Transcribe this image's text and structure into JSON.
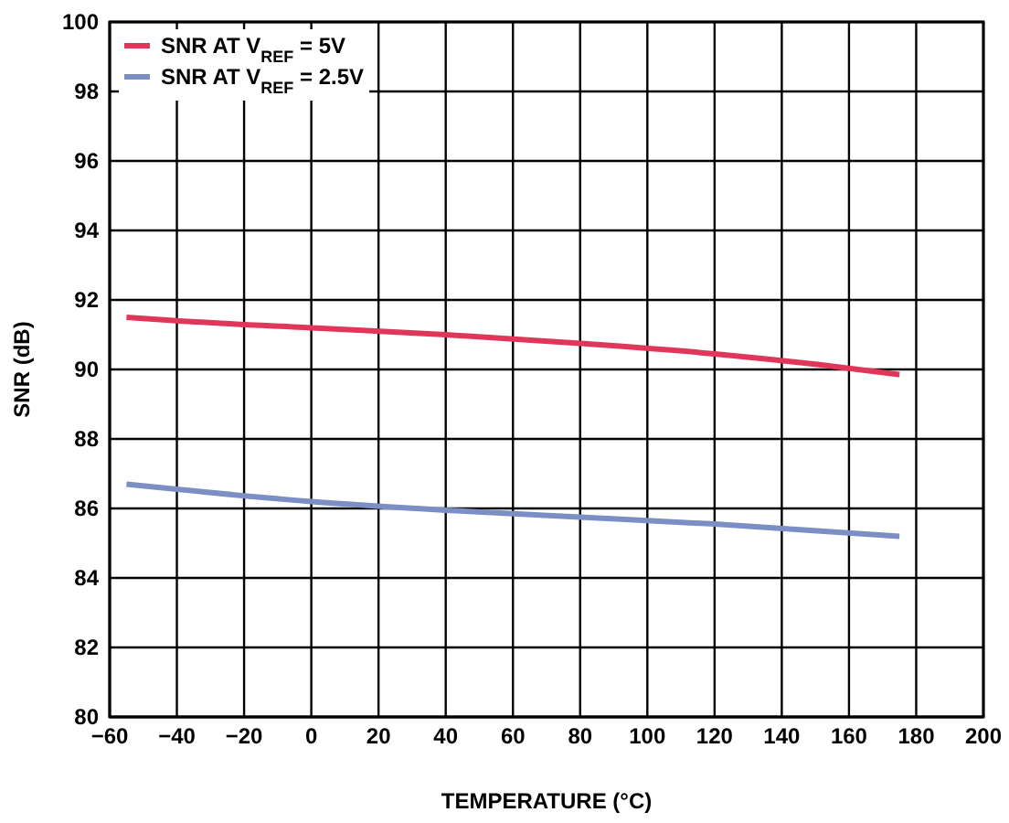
{
  "chart_data": {
    "type": "line",
    "xlabel": "TEMPERATURE (°C)",
    "ylabel": "SNR (dB)",
    "xlim": [
      -60,
      200
    ],
    "xticks": [
      -60,
      -40,
      -20,
      0,
      20,
      40,
      60,
      80,
      100,
      120,
      140,
      160,
      180,
      200
    ],
    "ylim": [
      80,
      100
    ],
    "yticks": [
      80,
      82,
      84,
      86,
      88,
      90,
      92,
      94,
      96,
      98,
      100
    ],
    "grid": true,
    "legend": "top left",
    "marker": "none",
    "line_style": "solid",
    "series": [
      {
        "name": "SNR AT V$_{REF}$ = 5V",
        "color": "#e0365a",
        "x": [
          -55,
          -40,
          0,
          40,
          80,
          120,
          150,
          175
        ],
        "values": [
          91.5,
          91.4,
          91.2,
          91.0,
          90.75,
          90.45,
          90.15,
          89.85
        ]
      },
      {
        "name": "SNR AT V$_{REF}$ = 2.5V",
        "color": "#7b8fc4",
        "x": [
          -55,
          -40,
          0,
          40,
          80,
          120,
          175
        ],
        "values": [
          86.7,
          86.55,
          86.2,
          85.95,
          85.75,
          85.55,
          85.2
        ]
      }
    ]
  }
}
